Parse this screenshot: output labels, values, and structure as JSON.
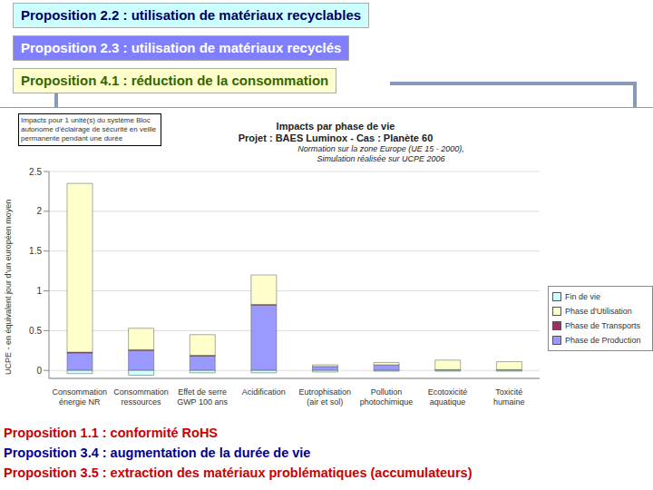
{
  "header": {
    "boxes": [
      "Proposition 2.2 : utilisation de matériaux recyclables",
      "Proposition 2.3 : utilisation de matériaux recyclés",
      "Proposition 4.1 : réduction de la consommation"
    ]
  },
  "footer": {
    "lines": [
      "Proposition 1.1 : conformité RoHS",
      "Proposition 3.4 : augmentation de la durée de vie",
      "Proposition 3.5 : extraction des matériaux problématiques (accumulateurs)"
    ]
  },
  "chart_data": {
    "type": "bar",
    "title": "Impacts par phase de vie",
    "subtitle": "Projet : BAES Luminox - Cas : Planète 60",
    "annotations": [
      "Normation sur la zone Europe (UE 15 - 2000), Simulation réalisée sur UCPE 2006",
      "Impacts pour 1 unité(s) du système Bloc autonome d'éclairage de sécurité en veille permanente pendant une durée"
    ],
    "y_label": "UCPE - en équivalent jour d'un européen moyen",
    "categories": [
      "Consommation énergie NR",
      "Consommation ressources",
      "Effet de serre GWP 100 ans",
      "Acidification",
      "Eutrophisation (air et sol)",
      "Pollution photochimique",
      "Ecotoxicité aquatique",
      "Toxicité humaine"
    ],
    "series": [
      {
        "name": "Phase de Production",
        "color": "#9999ff",
        "values": [
          0.22,
          0.25,
          0.18,
          0.82,
          0.05,
          0.07,
          0.01,
          0.01
        ]
      },
      {
        "name": "Phase de Transports",
        "color": "#993366",
        "values": [
          0.01,
          0.01,
          0.01,
          0.01,
          0,
          0,
          0,
          0
        ]
      },
      {
        "name": "Phase d'Utilisation",
        "color": "#ffffcc",
        "values": [
          2.12,
          0.27,
          0.26,
          0.37,
          0.02,
          0.03,
          0.12,
          0.1
        ]
      },
      {
        "name": "Fin de vie",
        "color": "#ccffff",
        "values": [
          -0.04,
          -0.06,
          -0.03,
          -0.03,
          -0.02,
          -0.01,
          -0.01,
          -0.01
        ]
      }
    ],
    "stacked": true,
    "ylim": [
      -0.1,
      2.5
    ],
    "yticks": [
      0,
      0.5,
      1,
      1.5,
      2,
      2.5
    ],
    "grid": true,
    "legend": "right"
  }
}
